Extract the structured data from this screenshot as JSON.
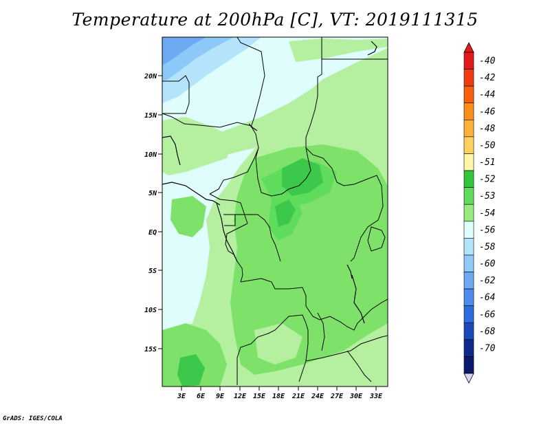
{
  "title": "Temperature at 200hPa [C], VT: 2019111315",
  "credit": "GrADS: IGES/COLA",
  "map": {
    "lat_labels": [
      "20N",
      "15N",
      "10N",
      "5N",
      "EQ",
      "5S",
      "10S",
      "15S"
    ],
    "lon_labels": [
      "3E",
      "6E",
      "9E",
      "12E",
      "15E",
      "18E",
      "21E",
      "24E",
      "27E",
      "30E",
      "33E"
    ]
  },
  "colorbar": {
    "labels": [
      "-40",
      "-42",
      "-44",
      "-46",
      "-48",
      "-50",
      "-51",
      "-52",
      "-53",
      "-54",
      "-56",
      "-58",
      "-60",
      "-62",
      "-64",
      "-66",
      "-68",
      "-70"
    ],
    "colors": [
      "#e31a1c",
      "#f03b14",
      "#f9600c",
      "#fd8d1c",
      "#feb237",
      "#fcd15c",
      "#fef7a9",
      "#33c63d",
      "#5fdc5c",
      "#97ec80",
      "#e0fdfe",
      "#b4e4fc",
      "#90c8f8",
      "#6eaaf2",
      "#4d8cec",
      "#2d6cdc",
      "#1a4bb8",
      "#0c2a8c",
      "#0a1a6c"
    ],
    "top_color": "#e31a1c",
    "bottom_color": "#d6d6f0"
  },
  "palette": {
    "light_cyan": "#e0fdfe",
    "light_green": "#b4f0a0",
    "mid_green": "#7ee26a",
    "green": "#5fdc5c",
    "dark_green": "#3cc84a",
    "light_blue": "#b4e4fc",
    "blue": "#8cc8f8",
    "deep_blue": "#6eaaf2"
  }
}
